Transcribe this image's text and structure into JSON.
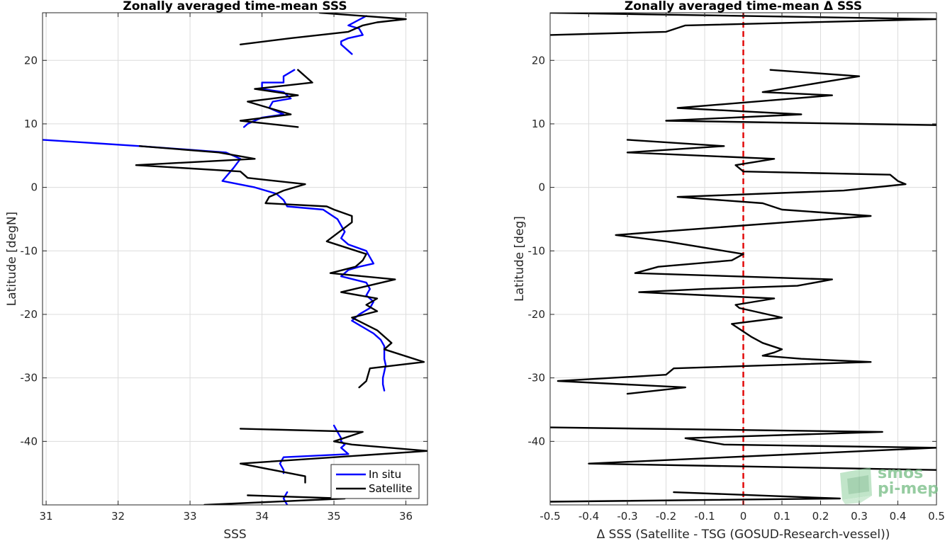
{
  "chart_data": [
    {
      "type": "line",
      "title": "Zonally averaged time-mean SSS",
      "xlabel": "SSS",
      "ylabel": "Latitude [degN]",
      "xlim": [
        30.95,
        36.3
      ],
      "ylim": [
        -50,
        27.5
      ],
      "xticks": [
        31,
        32,
        33,
        34,
        35,
        36
      ],
      "yticks": [
        20,
        10,
        0,
        -10,
        -20,
        -30,
        -40
      ],
      "grid": true,
      "legend_position": "bottom-right",
      "series": [
        {
          "name": "In situ",
          "color": "#0000ff",
          "segments": [
            [
              [
                35.45,
                27
              ],
              [
                35.2,
                25.5
              ],
              [
                35.35,
                25
              ],
              [
                35.4,
                24
              ],
              [
                35.2,
                23.5
              ],
              [
                35.1,
                23
              ],
              [
                35.1,
                22.5
              ],
              [
                35.15,
                22
              ],
              [
                35.25,
                21
              ]
            ],
            [
              [
                34.45,
                18.5
              ],
              [
                34.3,
                17.5
              ],
              [
                34.3,
                16.5
              ],
              [
                34.0,
                16.5
              ],
              [
                34.0,
                15.5
              ],
              [
                34.3,
                15
              ],
              [
                34.4,
                14
              ],
              [
                34.15,
                13.5
              ],
              [
                34.1,
                12.5
              ],
              [
                34.2,
                12
              ],
              [
                34.3,
                11.5
              ],
              [
                34.0,
                11
              ],
              [
                33.8,
                10
              ],
              [
                33.75,
                9.5
              ]
            ],
            [
              [
                30.95,
                7.5
              ],
              [
                32.3,
                6.5
              ],
              [
                33.5,
                5.5
              ],
              [
                33.7,
                4.5
              ],
              [
                33.6,
                3
              ],
              [
                33.45,
                1
              ],
              [
                33.9,
                0
              ],
              [
                34.2,
                -1
              ],
              [
                34.3,
                -2
              ],
              [
                34.35,
                -3
              ],
              [
                34.85,
                -3.5
              ],
              [
                35.05,
                -5
              ],
              [
                35.1,
                -6
              ],
              [
                35.15,
                -7
              ],
              [
                35.1,
                -8
              ],
              [
                35.2,
                -9
              ],
              [
                35.45,
                -10
              ],
              [
                35.5,
                -11
              ],
              [
                35.55,
                -12
              ],
              [
                35.35,
                -12.5
              ],
              [
                35.2,
                -13
              ],
              [
                35.1,
                -14
              ],
              [
                35.45,
                -15
              ],
              [
                35.5,
                -16
              ],
              [
                35.45,
                -17
              ],
              [
                35.55,
                -18
              ],
              [
                35.5,
                -19
              ],
              [
                35.35,
                -20
              ],
              [
                35.25,
                -21
              ],
              [
                35.4,
                -22
              ],
              [
                35.55,
                -23
              ],
              [
                35.65,
                -24
              ],
              [
                35.7,
                -25
              ],
              [
                35.7,
                -27
              ],
              [
                35.72,
                -28
              ],
              [
                35.7,
                -29
              ],
              [
                35.68,
                -30
              ],
              [
                35.68,
                -31
              ],
              [
                35.7,
                -32
              ]
            ],
            [
              [
                35.0,
                -37.5
              ],
              [
                35.05,
                -38.5
              ],
              [
                35.1,
                -39.5
              ],
              [
                35.1,
                -40
              ],
              [
                35.15,
                -40.5
              ],
              [
                35.1,
                -41
              ],
              [
                35.2,
                -42
              ],
              [
                34.3,
                -42.5
              ],
              [
                34.25,
                -43.5
              ],
              [
                34.3,
                -44.5
              ],
              [
                34.3,
                -45
              ]
            ],
            [
              [
                34.35,
                -48
              ],
              [
                34.3,
                -49
              ],
              [
                34.35,
                -50
              ]
            ]
          ]
        },
        {
          "name": "Satellite",
          "color": "#000000",
          "segments": [
            [
              [
                34.8,
                27.5
              ],
              [
                36.0,
                26.5
              ],
              [
                35.6,
                26
              ],
              [
                35.4,
                25.5
              ],
              [
                35.2,
                24.5
              ],
              [
                34.4,
                23.5
              ],
              [
                33.7,
                22.5
              ]
            ],
            [
              [
                34.5,
                18.5
              ],
              [
                34.7,
                16.5
              ],
              [
                33.9,
                15.5
              ],
              [
                34.5,
                14.5
              ],
              [
                33.8,
                13.5
              ],
              [
                34.1,
                12.5
              ],
              [
                34.4,
                11.5
              ],
              [
                33.7,
                10.5
              ],
              [
                34.5,
                9.5
              ]
            ],
            [
              [
                32.3,
                6.5
              ],
              [
                33.4,
                5.5
              ],
              [
                33.9,
                4.5
              ],
              [
                32.25,
                3.5
              ],
              [
                33.7,
                2.5
              ],
              [
                33.8,
                1.5
              ],
              [
                34.6,
                0.5
              ],
              [
                34.3,
                -0.5
              ],
              [
                34.1,
                -1.5
              ],
              [
                34.05,
                -2.5
              ],
              [
                34.9,
                -3
              ],
              [
                35.0,
                -3.5
              ],
              [
                35.25,
                -4.5
              ],
              [
                35.25,
                -5.5
              ],
              [
                34.9,
                -8.5
              ],
              [
                35.45,
                -10.5
              ],
              [
                35.4,
                -11.5
              ],
              [
                35.3,
                -12.5
              ],
              [
                34.95,
                -13.5
              ],
              [
                35.85,
                -14.5
              ],
              [
                35.1,
                -16.5
              ],
              [
                35.6,
                -17.5
              ],
              [
                35.45,
                -18.5
              ],
              [
                35.6,
                -19.5
              ],
              [
                35.25,
                -20.5
              ],
              [
                35.6,
                -22.5
              ],
              [
                35.8,
                -24.5
              ],
              [
                35.7,
                -25.5
              ],
              [
                36.25,
                -27.5
              ],
              [
                35.5,
                -28.5
              ],
              [
                35.45,
                -30.5
              ],
              [
                35.35,
                -31.5
              ]
            ],
            [
              [
                33.7,
                -38
              ],
              [
                35.4,
                -38.5
              ],
              [
                35.0,
                -40
              ],
              [
                35.25,
                -40.5
              ],
              [
                36.3,
                -41.5
              ],
              [
                33.7,
                -43.5
              ],
              [
                34.6,
                -45.5
              ],
              [
                34.6,
                -46.5
              ]
            ],
            [
              [
                33.8,
                -48.5
              ],
              [
                35.15,
                -49
              ],
              [
                33.2,
                -50
              ]
            ]
          ]
        }
      ]
    },
    {
      "type": "line",
      "title": "Zonally averaged time-mean Δ SSS",
      "xlabel": "Δ SSS (Satellite - TSG (GOSUD-Research-vessel))",
      "ylabel": "Latitude [deg]",
      "xlim": [
        -0.5,
        0.5
      ],
      "ylim": [
        -50,
        27.5
      ],
      "xticks": [
        -0.5,
        -0.4,
        -0.3,
        -0.2,
        -0.1,
        0,
        0.1,
        0.2,
        0.3,
        0.4,
        0.5
      ],
      "xtick_labels": [
        "-0.5",
        "-0.4",
        "-0.3",
        "-0.2",
        "-0.1",
        "0",
        "0.1",
        "0.2",
        "0.3",
        "0.4",
        "0.5"
      ],
      "yticks": [
        20,
        10,
        0,
        -10,
        -20,
        -30,
        -40
      ],
      "grid": true,
      "zero_line": {
        "x": 0,
        "color": "#e00000",
        "style": "dashed"
      },
      "series": [
        {
          "name": "",
          "color": "#000000",
          "segments": [
            [
              [
                -0.5,
                27.5
              ],
              [
                0.5,
                26.5
              ],
              [
                -0.15,
                25.5
              ],
              [
                -0.2,
                24.5
              ],
              [
                -0.5,
                24
              ]
            ],
            [
              [
                0.07,
                18.5
              ],
              [
                0.3,
                17.5
              ],
              [
                0.2,
                16.5
              ],
              [
                0.05,
                15
              ],
              [
                0.23,
                14.5
              ],
              [
                -0.17,
                12.5
              ],
              [
                0.15,
                11.5
              ],
              [
                -0.2,
                10.5
              ],
              [
                0.5,
                9.8
              ]
            ],
            [
              [
                -0.3,
                7.5
              ],
              [
                -0.05,
                6.5
              ],
              [
                -0.3,
                5.5
              ],
              [
                0.08,
                4.5
              ],
              [
                -0.02,
                3.5
              ],
              [
                0,
                2.5
              ],
              [
                0.38,
                2
              ],
              [
                0.4,
                1
              ],
              [
                0.42,
                0.5
              ],
              [
                0.26,
                -0.5
              ],
              [
                -0.17,
                -1.5
              ],
              [
                0.05,
                -2.5
              ],
              [
                0.1,
                -3.5
              ],
              [
                0.33,
                -4.5
              ],
              [
                -0.33,
                -7.5
              ],
              [
                -0.2,
                -8.5
              ],
              [
                0,
                -10.5
              ],
              [
                -0.03,
                -11.5
              ],
              [
                -0.22,
                -12.5
              ],
              [
                -0.28,
                -13.5
              ],
              [
                0.23,
                -14.5
              ],
              [
                0.14,
                -15.5
              ],
              [
                -0.1,
                -16
              ],
              [
                -0.27,
                -16.5
              ],
              [
                0.08,
                -17.5
              ],
              [
                -0.02,
                -18.5
              ],
              [
                -0.01,
                -19
              ],
              [
                0.1,
                -20.5
              ],
              [
                -0.03,
                -21.5
              ],
              [
                0.02,
                -23.5
              ],
              [
                0.05,
                -24.5
              ],
              [
                0.1,
                -25.5
              ],
              [
                0.08,
                -26
              ],
              [
                0.05,
                -26.5
              ],
              [
                0.15,
                -27
              ],
              [
                0.33,
                -27.5
              ],
              [
                -0.18,
                -28.5
              ],
              [
                -0.2,
                -29.5
              ],
              [
                -0.48,
                -30.5
              ],
              [
                -0.15,
                -31.5
              ],
              [
                -0.3,
                -32.5
              ]
            ],
            [
              [
                -0.5,
                -37.8
              ],
              [
                0.36,
                -38.5
              ],
              [
                -0.15,
                -39.5
              ],
              [
                -0.05,
                -40.5
              ],
              [
                0.5,
                -41
              ],
              [
                -0.4,
                -43.5
              ],
              [
                0.5,
                -44.5
              ]
            ],
            [
              [
                -0.18,
                -48
              ],
              [
                0.25,
                -49
              ],
              [
                -0.5,
                -49.5
              ]
            ]
          ]
        }
      ]
    }
  ],
  "legend": {
    "entries": [
      {
        "label": "In situ",
        "color": "#0000ff"
      },
      {
        "label": "Satellite",
        "color": "#000000"
      }
    ]
  },
  "logo": {
    "line1": "smos",
    "line2": "pi-mep"
  }
}
